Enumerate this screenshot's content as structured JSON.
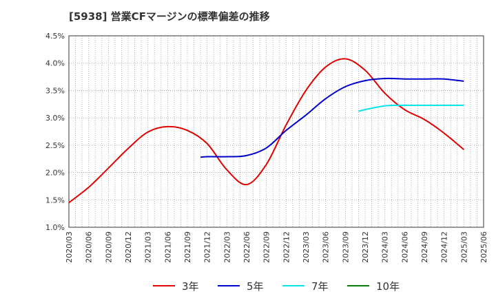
{
  "chart_data": {
    "type": "line",
    "title": "[5938]  営業CFマージンの標準偏差の推移",
    "xlabel": "",
    "ylabel": "",
    "ylim": [
      1.0,
      4.5
    ],
    "y_ticks": [
      "1.0%",
      "1.5%",
      "2.0%",
      "2.5%",
      "3.0%",
      "3.5%",
      "4.0%",
      "4.5%"
    ],
    "x_ticks": [
      "2020/03",
      "2020/06",
      "2020/09",
      "2020/12",
      "2021/03",
      "2021/06",
      "2021/09",
      "2021/12",
      "2022/03",
      "2022/06",
      "2022/09",
      "2022/12",
      "2023/03",
      "2023/06",
      "2023/09",
      "2023/12",
      "2024/03",
      "2024/06",
      "2024/09",
      "2024/12",
      "2025/03",
      "2025/06"
    ],
    "grid": true,
    "legend_position": "bottom",
    "series": [
      {
        "name": "3年",
        "color": "#e00000",
        "points": [
          [
            "2020/03",
            1.45
          ],
          [
            "2020/06",
            1.73
          ],
          [
            "2020/09",
            2.08
          ],
          [
            "2020/12",
            2.44
          ],
          [
            "2021/03",
            2.74
          ],
          [
            "2021/06",
            2.84
          ],
          [
            "2021/09",
            2.77
          ],
          [
            "2021/12",
            2.53
          ],
          [
            "2022/03",
            2.05
          ],
          [
            "2022/06",
            1.78
          ],
          [
            "2022/09",
            2.15
          ],
          [
            "2022/12",
            2.87
          ],
          [
            "2023/03",
            3.5
          ],
          [
            "2023/06",
            3.93
          ],
          [
            "2023/09",
            4.08
          ],
          [
            "2023/12",
            3.87
          ],
          [
            "2024/03",
            3.45
          ],
          [
            "2024/06",
            3.15
          ],
          [
            "2024/09",
            2.97
          ],
          [
            "2024/12",
            2.72
          ],
          [
            "2025/03",
            2.42
          ]
        ]
      },
      {
        "name": "5年",
        "color": "#0000cc",
        "points": [
          [
            "2021/11",
            2.28
          ],
          [
            "2021/12",
            2.29
          ],
          [
            "2022/03",
            2.29
          ],
          [
            "2022/06",
            2.31
          ],
          [
            "2022/09",
            2.45
          ],
          [
            "2022/12",
            2.77
          ],
          [
            "2023/03",
            3.05
          ],
          [
            "2023/06",
            3.35
          ],
          [
            "2023/09",
            3.57
          ],
          [
            "2023/12",
            3.68
          ],
          [
            "2024/03",
            3.72
          ],
          [
            "2024/06",
            3.71
          ],
          [
            "2024/09",
            3.71
          ],
          [
            "2024/12",
            3.71
          ],
          [
            "2025/03",
            3.67
          ]
        ]
      },
      {
        "name": "7年",
        "color": "#00e5ee",
        "points": [
          [
            "2023/11",
            3.12
          ],
          [
            "2023/12",
            3.15
          ],
          [
            "2024/03",
            3.22
          ],
          [
            "2024/06",
            3.23
          ],
          [
            "2024/09",
            3.23
          ],
          [
            "2024/12",
            3.23
          ],
          [
            "2025/03",
            3.23
          ]
        ]
      },
      {
        "name": "10年",
        "color": "#008000",
        "points": []
      }
    ]
  }
}
